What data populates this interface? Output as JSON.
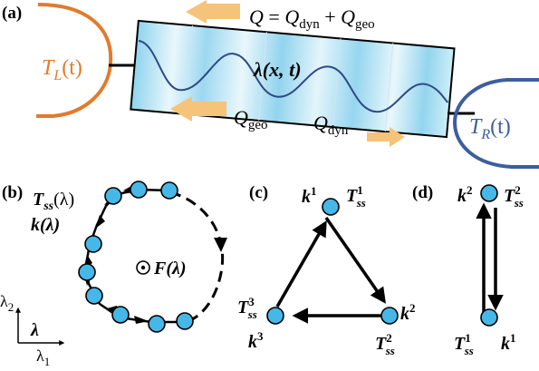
{
  "panels": {
    "a": "(a)",
    "b": "(b)",
    "c": "(c)",
    "d": "(d)"
  },
  "panel_a": {
    "reservoir_left": {
      "symbol": "T",
      "sub": "L",
      "arg": "(t)",
      "color": "#e07b2e"
    },
    "reservoir_right": {
      "symbol": "T",
      "sub": "R",
      "arg": "(t)",
      "color": "#3d5e9e"
    },
    "heat_equation": {
      "lhs": "Q",
      "eq": " = ",
      "q1": "Q",
      "q1_sub": "dyn",
      "plus": " + ",
      "q2": "Q",
      "q2_sub": "geo"
    },
    "lambda_field": "λ(x, t)",
    "q_geo": {
      "symbol": "Q",
      "sub": "geo"
    },
    "q_dyn": {
      "symbol": "Q",
      "sub": "dyn"
    },
    "arrow_color": "#f6c37a",
    "bar_fill_dark": "#8fd4ee",
    "bar_fill_light": "#e9f7fc",
    "wave_color": "#2d4a86"
  },
  "panel_b": {
    "tss_label": {
      "symbol": "T",
      "sub": "ss",
      "arg": "(λ)"
    },
    "k_label": {
      "symbol": "k",
      "arg": "(λ)"
    },
    "force_label": {
      "symbol": "F",
      "arg": "(λ)"
    },
    "axis_x": {
      "symbol": "λ",
      "sub": "1"
    },
    "axis_y": {
      "symbol": "λ",
      "sub": "2"
    },
    "axis_vector": "λ",
    "node_color": "#45b8e8"
  },
  "panel_c": {
    "top": {
      "k": "k",
      "k_sup": "1",
      "t": "T",
      "t_sup": "1",
      "t_sub": "ss"
    },
    "right": {
      "k": "k",
      "k_sup": "2",
      "t": "T",
      "t_sup": "2",
      "t_sub": "ss"
    },
    "left": {
      "k": "k",
      "k_sup": "3",
      "t": "T",
      "t_sup": "3",
      "t_sub": "ss"
    }
  },
  "panel_d": {
    "top": {
      "k": "k",
      "k_sup": "2",
      "t": "T",
      "t_sup": "2",
      "t_sub": "ss"
    },
    "bottom": {
      "k": "k",
      "k_sup": "1",
      "t": "T",
      "t_sup": "1",
      "t_sub": "ss"
    }
  }
}
